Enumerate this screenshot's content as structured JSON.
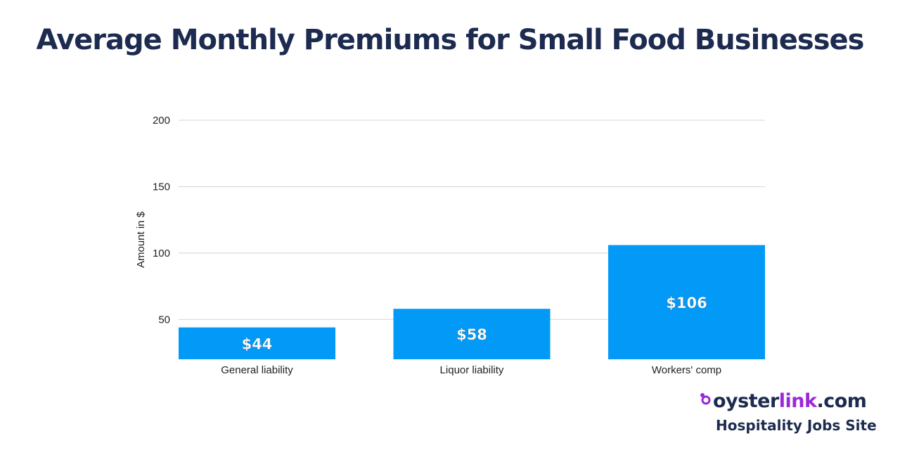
{
  "chart_data": {
    "type": "bar",
    "title": "Average Monthly Premiums for Small Food Businesses",
    "xlabel": "",
    "ylabel": "Amount in $",
    "categories": [
      "General liability",
      "Liquor liability",
      "Workers' comp"
    ],
    "values": [
      44,
      58,
      106
    ],
    "data_labels": [
      "$44",
      "$58",
      "$106"
    ],
    "yticks": [
      50,
      100,
      150,
      200
    ],
    "ylim": [
      20,
      200
    ],
    "grid": true,
    "bar_color": "#0399f7"
  },
  "branding": {
    "brand_oyster": "oyster",
    "brand_link": "link",
    "brand_com": ".com",
    "tagline": "Hospitality Jobs Site",
    "brand_color": "#9b28d9",
    "text_color": "#1c2b4f"
  }
}
